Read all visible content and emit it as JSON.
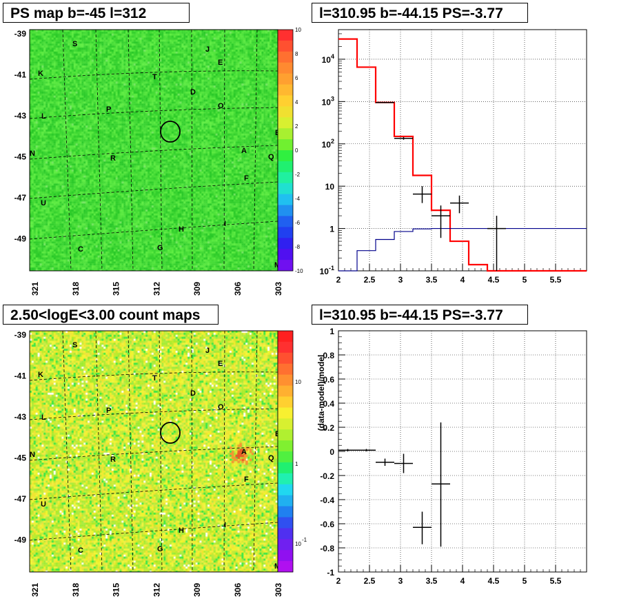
{
  "panels": {
    "ps_map": {
      "title": "PS map b=-45 l=312"
    },
    "count_map": {
      "title": "2.50<logE<3.00 count maps"
    },
    "spectrum": {
      "title": "l=310.95 b=-44.15 PS=-3.77"
    },
    "residual": {
      "title": "l=310.95 b=-44.15 PS=-3.77"
    }
  },
  "map_axes": {
    "yticks": [
      "-39",
      "-41",
      "-43",
      "-45",
      "-47",
      "-49"
    ],
    "xticks": [
      "321",
      "318",
      "315",
      "312",
      "309",
      "306",
      "303"
    ]
  },
  "ps_colorbar": {
    "ticks": [
      "10",
      "8",
      "6",
      "4",
      "2",
      "0",
      "-2",
      "-4",
      "-6",
      "-8",
      "-10"
    ]
  },
  "count_colorbar": {
    "ticks": [
      "10",
      "1",
      "10",
      "-1"
    ]
  },
  "map_letters": [
    "S",
    "J",
    "E",
    "K",
    "T",
    "D",
    "O",
    "P",
    "L",
    "B",
    "N",
    "A",
    "Q",
    "R",
    "F",
    "U",
    "I",
    "H",
    "C",
    "G",
    "M"
  ],
  "chart_data": [
    {
      "type": "line",
      "title": "l=310.95 b=-44.15 PS=-3.77",
      "xlabel": "",
      "ylabel": "",
      "xlim": [
        2,
        6
      ],
      "ylim": [
        0.1,
        50000
      ],
      "yscale": "log",
      "grid": true,
      "x_ticks": [
        "2",
        "2.5",
        "3",
        "3.5",
        "4",
        "4.5",
        "5",
        "5.5"
      ],
      "y_ticks": [
        "10^4",
        "10^3",
        "10^2",
        "10",
        "1",
        "10^-1"
      ],
      "series": [
        {
          "color": "#ff0000",
          "style": "step",
          "edges": [
            2.0,
            2.3,
            2.6,
            2.9,
            3.2,
            3.5,
            3.8,
            4.1,
            4.4,
            4.7,
            5.0,
            5.3,
            5.6,
            6.0
          ],
          "values": [
            30000,
            6500,
            950,
            150,
            18,
            2.7,
            0.5,
            0.14,
            0.1,
            0.1,
            0.1,
            0.1,
            0.1
          ]
        },
        {
          "color": "#00008b",
          "style": "step",
          "edges": [
            2.0,
            2.3,
            2.6,
            2.9,
            3.2,
            3.5,
            3.8,
            4.1,
            4.4,
            4.7,
            5.0,
            5.3,
            5.6,
            6.0
          ],
          "values": [
            0.1,
            0.3,
            0.55,
            0.85,
            0.98,
            1.0,
            1.0,
            1.0,
            1.0,
            1.0,
            1.0,
            1.0,
            1.0
          ]
        },
        {
          "color": "#000000",
          "style": "errorbar",
          "points": [
            {
              "x": 2.75,
              "xerr": 0.15,
              "y": 950,
              "ylo": 920,
              "yhi": 980
            },
            {
              "x": 3.05,
              "xerr": 0.15,
              "y": 135,
              "ylo": 125,
              "yhi": 145
            },
            {
              "x": 3.35,
              "xerr": 0.15,
              "y": 6.5,
              "ylo": 4.0,
              "yhi": 10.0
            },
            {
              "x": 3.65,
              "xerr": 0.15,
              "y": 2.0,
              "ylo": 0.6,
              "yhi": 3.5
            },
            {
              "x": 3.95,
              "xerr": 0.15,
              "y": 4.0,
              "ylo": 2.3,
              "yhi": 6.0
            },
            {
              "x": 4.55,
              "xerr": 0.15,
              "y": 1.0,
              "ylo": 0.1,
              "yhi": 2.0
            }
          ]
        }
      ]
    },
    {
      "type": "scatter",
      "title": "l=310.95 b=-44.15 PS=-3.77",
      "xlabel": "",
      "ylabel": "(data-model)/model",
      "xlim": [
        2,
        6
      ],
      "ylim": [
        -1,
        1
      ],
      "grid": true,
      "x_ticks": [
        "2",
        "2.5",
        "3",
        "3.5",
        "4",
        "4.5",
        "5",
        "5.5"
      ],
      "y_ticks": [
        "1",
        "0.8",
        "0.6",
        "0.4",
        "0.2",
        "0",
        "-0.2",
        "-0.4",
        "-0.6",
        "-0.8",
        "-1"
      ],
      "series": [
        {
          "color": "#000000",
          "style": "errorbar",
          "points": [
            {
              "x": 2.15,
              "xerr": 0.15,
              "y": 0.01,
              "ylo": 0.0,
              "yhi": 0.02
            },
            {
              "x": 2.45,
              "xerr": 0.15,
              "y": 0.01,
              "ylo": 0.0,
              "yhi": 0.02
            },
            {
              "x": 2.75,
              "xerr": 0.15,
              "y": -0.09,
              "ylo": -0.12,
              "yhi": -0.06
            },
            {
              "x": 3.05,
              "xerr": 0.15,
              "y": -0.1,
              "ylo": -0.18,
              "yhi": -0.02
            },
            {
              "x": 3.35,
              "xerr": 0.15,
              "y": -0.63,
              "ylo": -0.77,
              "yhi": -0.5
            },
            {
              "x": 3.65,
              "xerr": 0.15,
              "y": -0.27,
              "ylo": -0.79,
              "yhi": 0.24
            }
          ]
        }
      ]
    }
  ]
}
